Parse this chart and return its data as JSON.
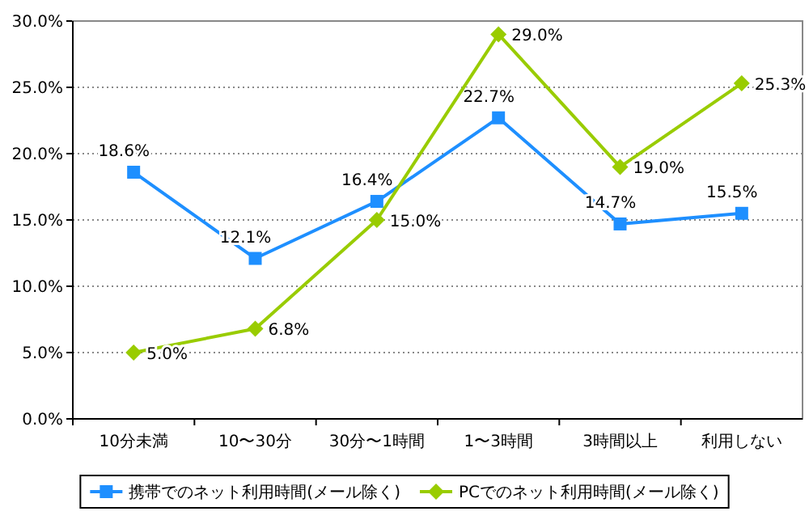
{
  "chart_data": {
    "type": "line",
    "categories": [
      "10分未満",
      "10〜30分",
      "30分〜1時間",
      "1〜3時間",
      "3時間以上",
      "利用しない"
    ],
    "series": [
      {
        "name": "携帯でのネット利用時間(メール除く)",
        "color": "#1e8fff",
        "marker": "square",
        "values": [
          18.6,
          12.1,
          16.4,
          22.7,
          14.7,
          15.5
        ],
        "value_labels": [
          "18.6%",
          "12.1%",
          "16.4%",
          "22.7%",
          "14.7%",
          "15.5%"
        ]
      },
      {
        "name": "PCでのネット利用時間(メール除く)",
        "color": "#99cc00",
        "marker": "diamond",
        "values": [
          5.0,
          6.8,
          15.0,
          29.0,
          19.0,
          25.3
        ],
        "value_labels": [
          "5.0%",
          "6.8%",
          "15.0%",
          "29.0%",
          "19.0%",
          "25.3%"
        ]
      }
    ],
    "ylim": [
      0,
      30
    ],
    "yticks": [
      {
        "value": 0,
        "label": "0.0%"
      },
      {
        "value": 5,
        "label": "5.0%"
      },
      {
        "value": 10,
        "label": "10.0%"
      },
      {
        "value": 15,
        "label": "15.0%"
      },
      {
        "value": 20,
        "label": "20.0%"
      },
      {
        "value": 25,
        "label": "25.0%"
      },
      {
        "value": 30,
        "label": "30.0%"
      }
    ],
    "grid": "y",
    "legend": "bottom"
  }
}
